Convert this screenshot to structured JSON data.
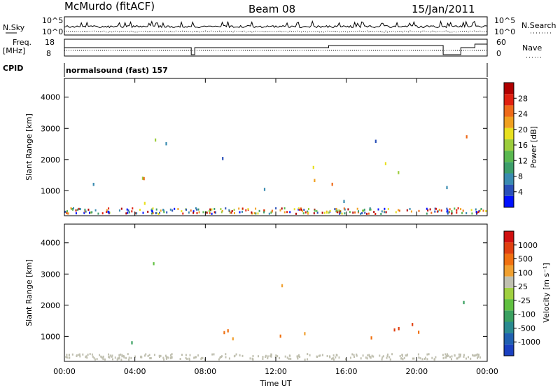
{
  "header": {
    "title": "McMurdo (fitACF)",
    "beam": "Beam 08",
    "date": "15/Jan/2011"
  },
  "side_labels": {
    "nsky": "N.Sky",
    "nsearch": "N.Search",
    "freq": "Freq.",
    "freq_unit": "[MHz]",
    "nave": "Nave",
    "cpid": "CPID"
  },
  "cpid_text": "normalsound (fast) 157",
  "noise_axis": {
    "left_ticks": [
      "10^5",
      "10^0"
    ],
    "right_ticks": [
      "10^5",
      "10^0"
    ]
  },
  "freq_axis": {
    "left_ticks": [
      "18",
      "8"
    ],
    "right_ticks": [
      "60",
      "0"
    ]
  },
  "colors": {
    "power_scale": [
      "#0010ff",
      "#2a50b8",
      "#3a8bb0",
      "#3d9e6a",
      "#5ab850",
      "#9ccd3c",
      "#e8e020",
      "#f0a020",
      "#ee6a1a",
      "#e02010",
      "#b00000"
    ],
    "velocity_scale": [
      "#1a40c0",
      "#2060b0",
      "#2a8a90",
      "#3aa060",
      "#60c040",
      "#a0d040",
      "#c0c0b0",
      "#f0a030",
      "#f07010",
      "#e04010",
      "#d01010"
    ],
    "ground_scatter": "#b4b4b4"
  },
  "chart_data": [
    {
      "type": "heatmap",
      "name": "power",
      "ylabel": "Slant Range [km]",
      "xlabel": "",
      "x_ticks": [
        "00:00",
        "04:00",
        "08:00",
        "12:00",
        "16:00",
        "20:00",
        "00:00"
      ],
      "y_ticks": [
        1000,
        2000,
        3000,
        4000
      ],
      "ylim": [
        200,
        4600
      ],
      "colorbar": {
        "label": "Power [dB]",
        "ticks": [
          4,
          8,
          12,
          16,
          20,
          24,
          28
        ]
      }
    },
    {
      "type": "heatmap",
      "name": "velocity",
      "ylabel": "Slant Range [km]",
      "xlabel": "Time UT",
      "x_ticks": [
        "00:00",
        "04:00",
        "08:00",
        "12:00",
        "16:00",
        "20:00",
        "00:00"
      ],
      "y_ticks": [
        1000,
        2000,
        3000,
        4000
      ],
      "ylim": [
        200,
        4600
      ],
      "colorbar": {
        "label": "Velocity [m s⁻¹]",
        "ticks": [
          1000,
          500,
          100,
          25,
          -25,
          -100,
          -500,
          -1000
        ]
      }
    }
  ]
}
